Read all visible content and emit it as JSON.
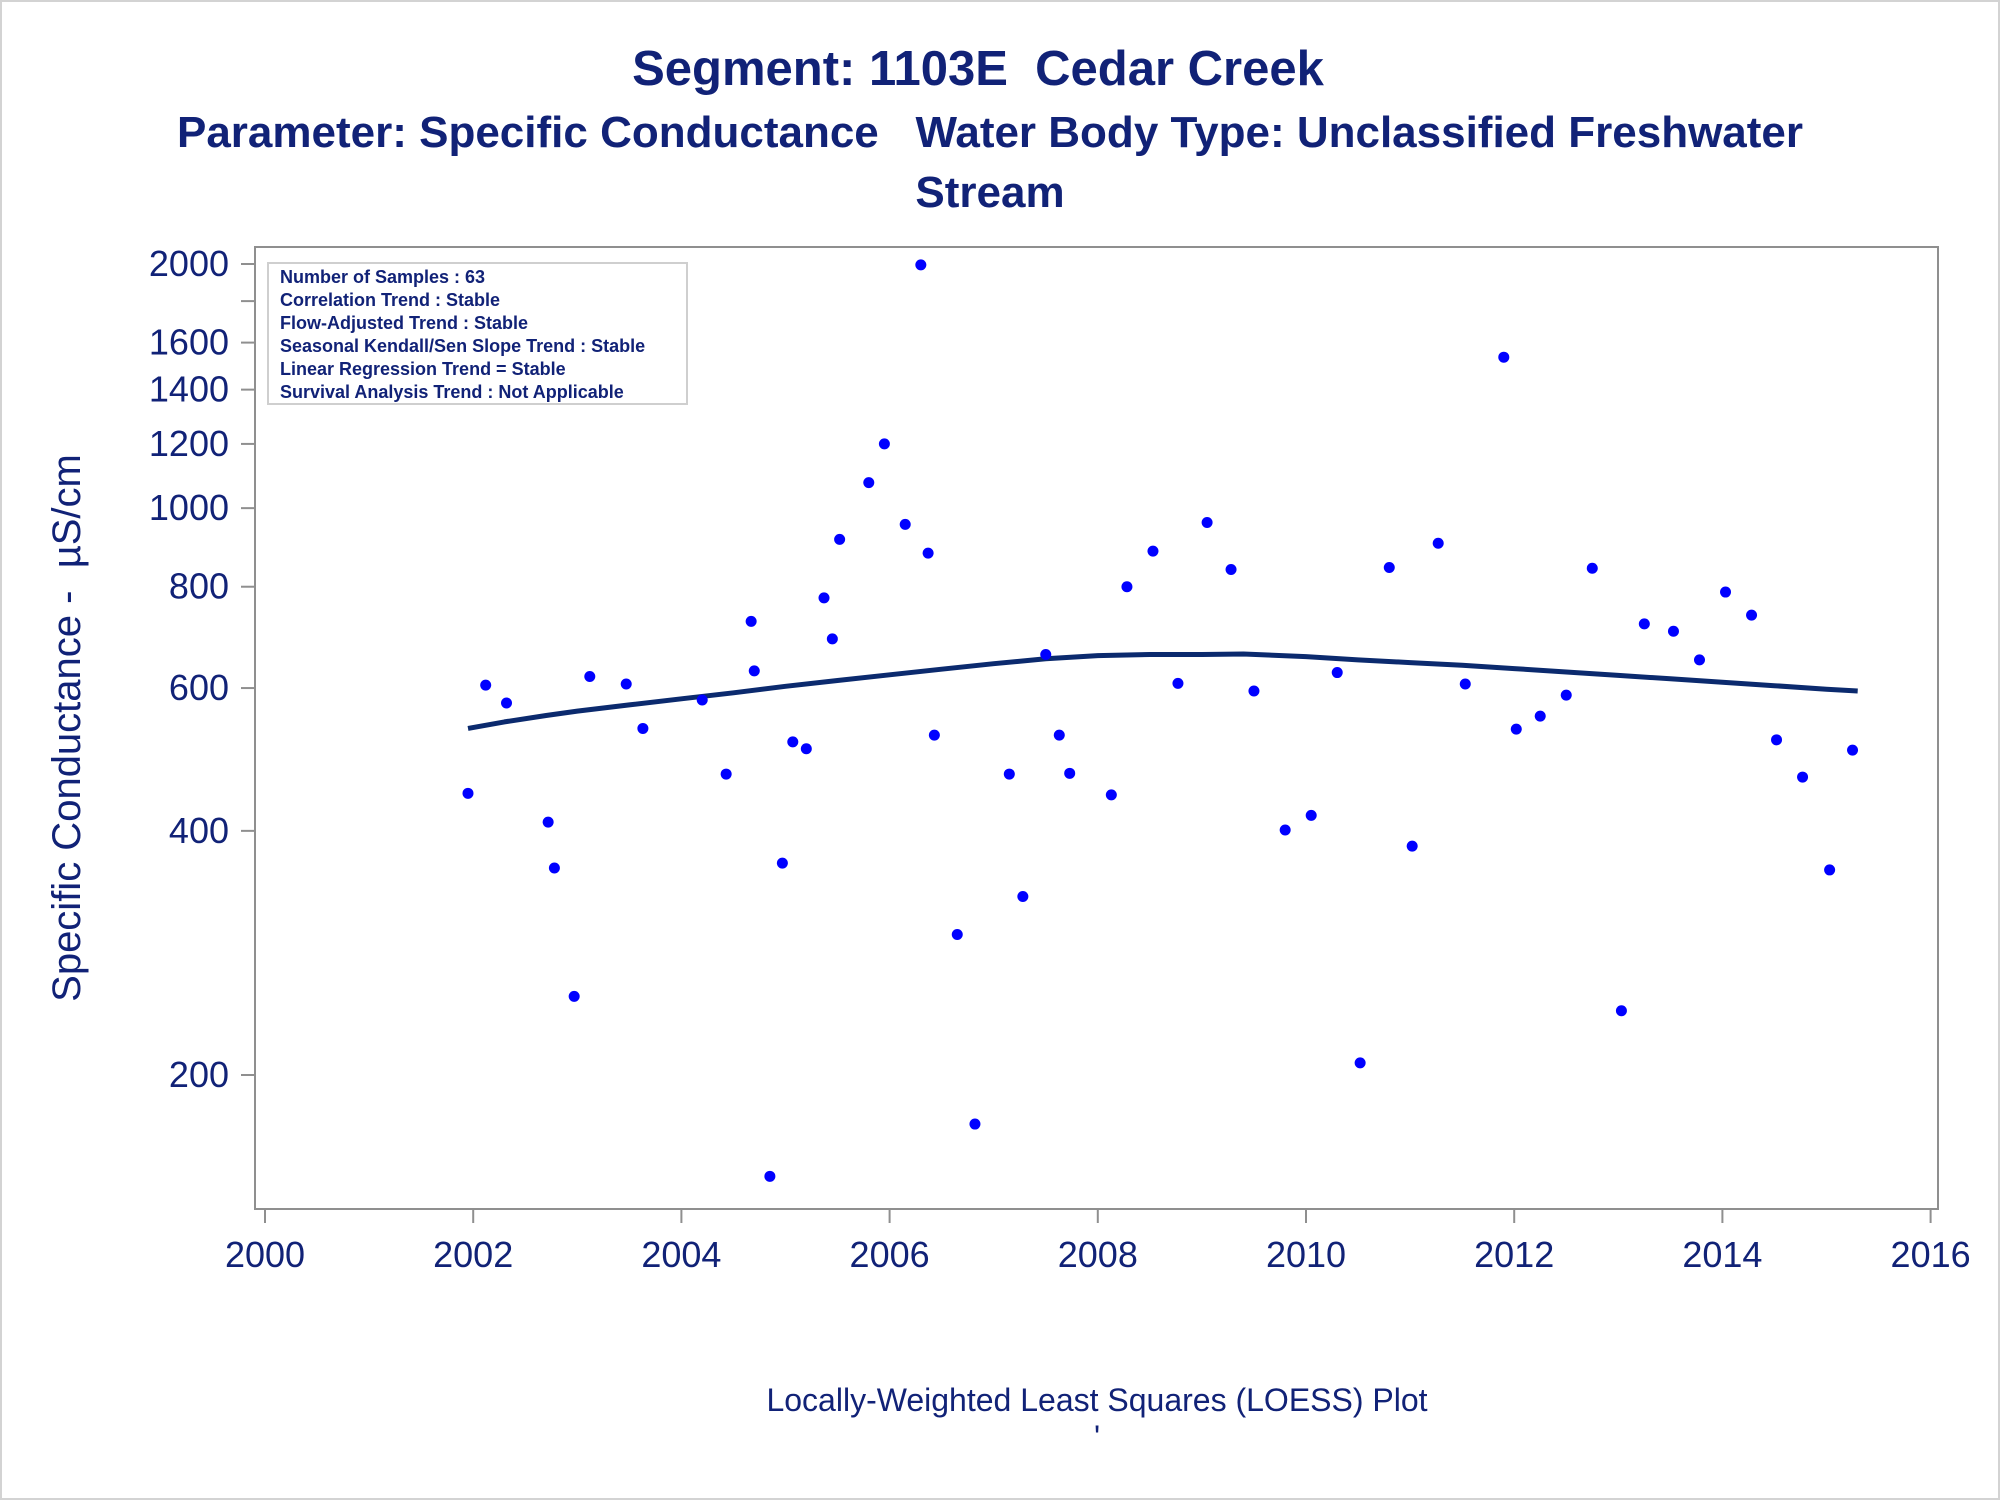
{
  "chart_data": {
    "type": "scatter",
    "title": "Segment: 1103E  Cedar Creek",
    "subtitle_lines": [
      "Parameter: Specific Conductance   Water Body Type: Unclassified Freshwater",
      "Stream"
    ],
    "xlabel": "",
    "ylabel": "Specific Conductance -  µS/cm",
    "footnote": "Locally-Weighted Least Squares (LOESS) Plot",
    "footnote_mark": "'",
    "xlim": [
      2000,
      2016
    ],
    "ylim": [
      145,
      2100
    ],
    "y_scale": "log",
    "x_ticks": [
      2000,
      2002,
      2004,
      2006,
      2008,
      2010,
      2012,
      2014,
      2016
    ],
    "y_ticks": [
      200,
      400,
      600,
      800,
      1000,
      1200,
      1400,
      1600,
      2000
    ],
    "y_minor_ticks": [
      1800
    ],
    "grid": false,
    "marker_color": "#0000ff",
    "line_color": "#0b2a6e",
    "series": [
      {
        "kind": "points",
        "x": [
          2001.95,
          2002.12,
          2002.32,
          2002.72,
          2002.78,
          2002.97,
          2003.12,
          2003.47,
          2003.63,
          2004.2,
          2004.43,
          2004.67,
          2004.7,
          2004.85,
          2004.97,
          2005.07,
          2005.2,
          2005.37,
          2005.45,
          2005.52,
          2005.8,
          2005.95,
          2006.15,
          2006.3,
          2006.37,
          2006.43,
          2006.65,
          2006.82,
          2007.15,
          2007.28,
          2007.5,
          2007.63,
          2007.73,
          2008.13,
          2008.28,
          2008.53,
          2008.77,
          2009.05,
          2009.28,
          2009.5,
          2009.8,
          2010.05,
          2010.3,
          2010.52,
          2010.8,
          2011.02,
          2011.27,
          2011.53,
          2011.9,
          2012.02,
          2012.25,
          2012.5,
          2012.75,
          2013.03,
          2013.25,
          2013.53,
          2013.78,
          2014.03,
          2014.28,
          2014.52,
          2014.77,
          2015.03,
          2015.25
        ],
        "y": [
          445,
          605,
          575,
          410,
          360,
          250,
          620,
          607,
          535,
          580,
          470,
          725,
          630,
          150,
          365,
          515,
          505,
          775,
          690,
          915,
          1075,
          1200,
          955,
          1995,
          880,
          525,
          298,
          174,
          470,
          332,
          660,
          525,
          471,
          443,
          800,
          885,
          608,
          960,
          840,
          595,
          401,
          418,
          627,
          207,
          845,
          383,
          905,
          607,
          1535,
          534,
          554,
          588,
          843,
          240,
          720,
          705,
          650,
          788,
          738,
          518,
          466,
          358,
          503
        ]
      },
      {
        "kind": "loess",
        "x": [
          2001.95,
          2002.3,
          2002.7,
          2003.0,
          2003.5,
          2004.0,
          2004.5,
          2005.0,
          2005.5,
          2006.0,
          2006.5,
          2007.0,
          2007.5,
          2008.0,
          2008.5,
          2009.0,
          2009.4,
          2010.0,
          2010.5,
          2011.0,
          2011.5,
          2012.0,
          2012.5,
          2013.0,
          2013.5,
          2014.0,
          2014.5,
          2015.0,
          2015.3
        ],
        "y": [
          535,
          545,
          555,
          562,
          572,
          582,
          592,
          603,
          613,
          623,
          633,
          643,
          652,
          658,
          660,
          660,
          661,
          656,
          650,
          645,
          640,
          634,
          628,
          622,
          616,
          610,
          604,
          598,
          595
        ]
      }
    ]
  },
  "stats_box": {
    "lines": [
      "Number of Samples : 63",
      "Correlation Trend : Stable",
      "Flow-Adjusted Trend : Stable",
      "Seasonal Kendall/Sen Slope Trend : Stable",
      "Linear Regression Trend = Stable",
      "Survival Analysis Trend : Not Applicable"
    ]
  }
}
